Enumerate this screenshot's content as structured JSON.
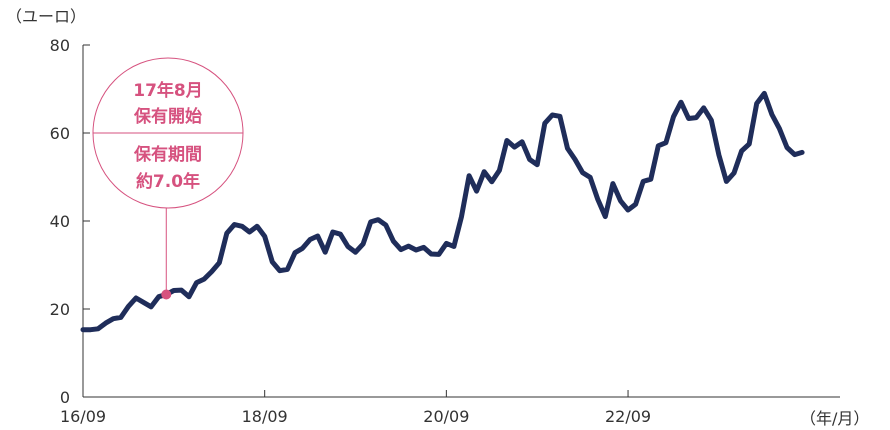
{
  "chart_data": {
    "type": "line",
    "ylabel": "（ユーロ）",
    "xlabel": "（年/月）",
    "ylim": [
      0,
      80
    ],
    "yticks": [
      "0",
      "20",
      "40",
      "60",
      "80"
    ],
    "xticks": [
      "16/09",
      "18/09",
      "20/09",
      "22/09"
    ],
    "grid": false,
    "colors": {
      "line": "#1f2d5a",
      "accent": "#d6527f",
      "axis": "#333333"
    },
    "annotation": {
      "top_line1": "17年8月",
      "top_line2": "保有開始",
      "bottom_line1": "保有期間",
      "bottom_line2": "約7.0年",
      "x": "2017-08",
      "y": 23.3
    },
    "series": [
      {
        "x": [
          "2016-09",
          "2016-10",
          "2016-11",
          "2016-12",
          "2017-01",
          "2017-02",
          "2017-03",
          "2017-04",
          "2017-05",
          "2017-06",
          "2017-07",
          "2017-08",
          "2017-09",
          "2017-10",
          "2017-11",
          "2017-12",
          "2018-01",
          "2018-02",
          "2018-03",
          "2018-04",
          "2018-05",
          "2018-06",
          "2018-07",
          "2018-08",
          "2018-09",
          "2018-10",
          "2018-11",
          "2018-12",
          "2019-01",
          "2019-02",
          "2019-03",
          "2019-04",
          "2019-05",
          "2019-06",
          "2019-07",
          "2019-08",
          "2019-09",
          "2019-10",
          "2019-11",
          "2019-12",
          "2020-01",
          "2020-02",
          "2020-03",
          "2020-04",
          "2020-05",
          "2020-06",
          "2020-07",
          "2020-08",
          "2020-09",
          "2020-10",
          "2020-11",
          "2020-12",
          "2021-01",
          "2021-02",
          "2021-03",
          "2021-04",
          "2021-05",
          "2021-06",
          "2021-07",
          "2021-08",
          "2021-09",
          "2021-10",
          "2021-11",
          "2021-12",
          "2022-01",
          "2022-02",
          "2022-03",
          "2022-04",
          "2022-05",
          "2022-06",
          "2022-07",
          "2022-08",
          "2022-09",
          "2022-10",
          "2022-11",
          "2022-12",
          "2023-01",
          "2023-02",
          "2023-03",
          "2023-04",
          "2023-05",
          "2023-06",
          "2023-07",
          "2023-08",
          "2023-09",
          "2023-10",
          "2023-11",
          "2023-12",
          "2024-01",
          "2024-02",
          "2024-03",
          "2024-04",
          "2024-05",
          "2024-06",
          "2024-07",
          "2024-08",
          "2024-09",
          "2024-10",
          "2024-11",
          "2024-12",
          "2025-01"
        ],
        "values": [
          15.3,
          15.3,
          15.5,
          16.8,
          17.8,
          18.1,
          20.6,
          22.5,
          21.5,
          20.5,
          22.8,
          23.3,
          24.2,
          24.3,
          22.8,
          26.0,
          26.8,
          28.5,
          30.5,
          37.2,
          39.2,
          38.8,
          37.5,
          38.8,
          36.5,
          30.7,
          28.7,
          29.0,
          32.8,
          33.8,
          35.8,
          36.6,
          32.9,
          37.5,
          37.0,
          34.2,
          32.9,
          34.8,
          39.8,
          40.3,
          39.1,
          35.4,
          33.5,
          34.3,
          33.4,
          34.0,
          32.5,
          32.4,
          34.9,
          34.2,
          41.0,
          50.3,
          46.8,
          51.2,
          48.9,
          51.5,
          58.3,
          56.8,
          58.0,
          54.0,
          52.8,
          62.2,
          64.1,
          63.8,
          56.5,
          54.0,
          51.0,
          49.9,
          44.9,
          41.0,
          48.5,
          44.6,
          42.5,
          43.8,
          49.0,
          49.5,
          57.1,
          57.8,
          63.7,
          67.0,
          63.3,
          63.5,
          65.7,
          62.9,
          55.0,
          49.0,
          50.9,
          55.9,
          57.5,
          66.7,
          69.0,
          64.2,
          61.0,
          56.7,
          55.1,
          55.6,
          null,
          null,
          null,
          null,
          null
        ]
      }
    ]
  }
}
